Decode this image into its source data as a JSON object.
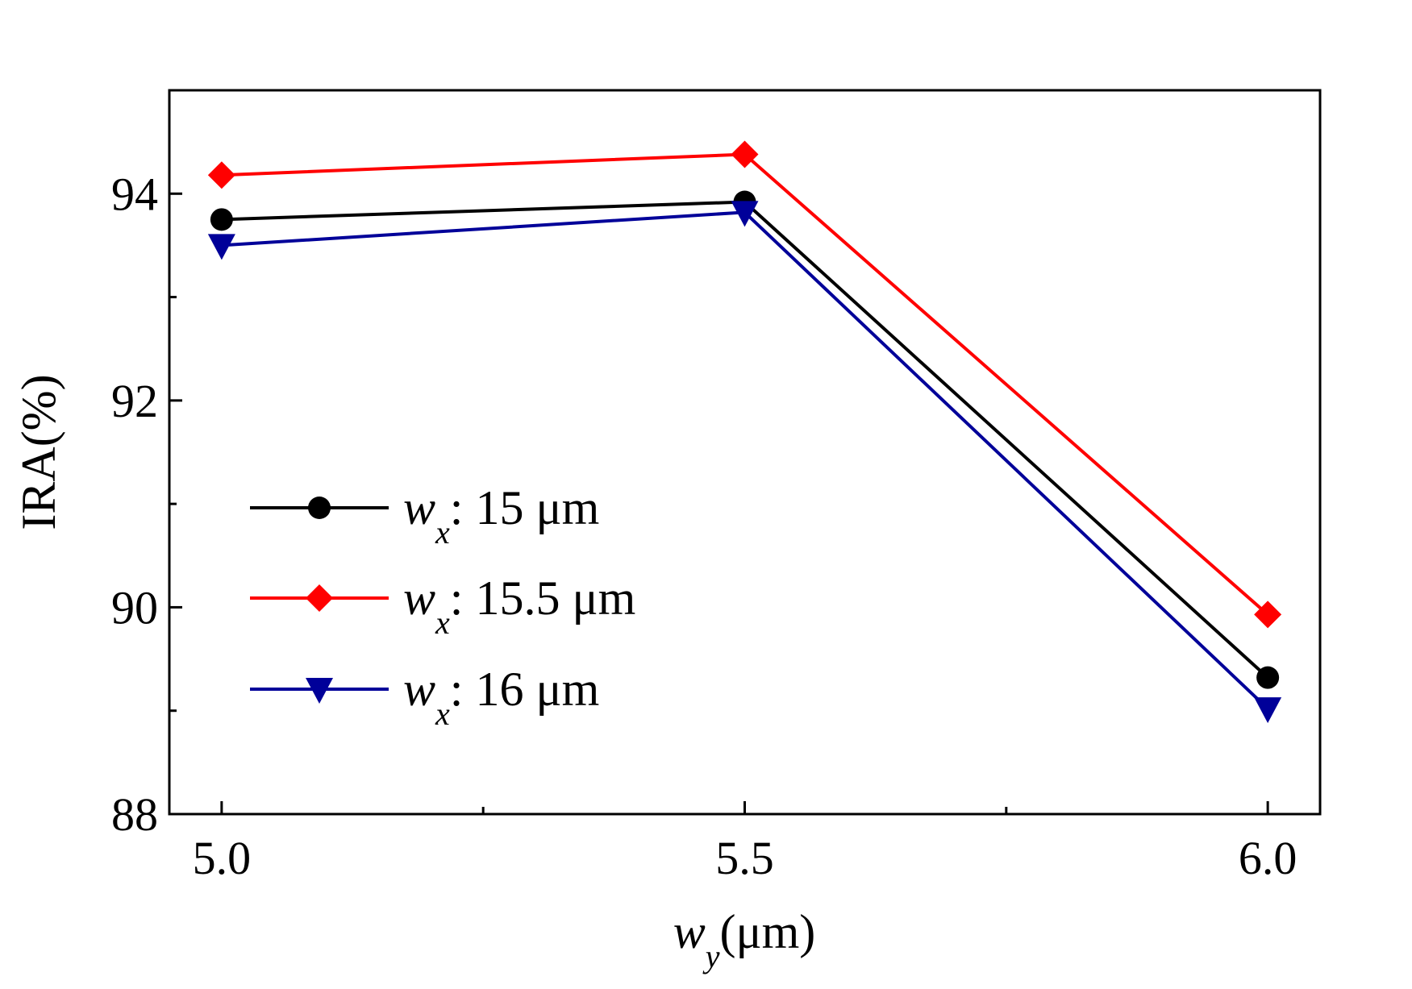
{
  "chart_data": {
    "type": "line",
    "title": "",
    "xlabel": {
      "main": "w",
      "sub": "y",
      "unit": "(μm)"
    },
    "ylabel": "IRA(%)",
    "x": [
      5.0,
      5.5,
      6.0
    ],
    "xlim": [
      4.95,
      6.05
    ],
    "ylim": [
      88,
      95
    ],
    "xticks": [
      "5.0",
      "5.5",
      "6.0"
    ],
    "xticks_values": [
      5.0,
      5.5,
      6.0
    ],
    "yticks": [
      "88",
      "90",
      "92",
      "94"
    ],
    "yticks_values": [
      88,
      90,
      92,
      94
    ],
    "legend_position": "lower-left",
    "series": [
      {
        "name": "w_x: 15 μm",
        "legend_main": "w",
        "legend_sub": "x",
        "legend_text": ": 15 μm",
        "color": "#000000",
        "marker": "circle",
        "values": [
          93.75,
          93.92,
          89.32
        ]
      },
      {
        "name": "w_x: 15.5 μm",
        "legend_main": "w",
        "legend_sub": "x",
        "legend_text": ": 15.5 μm",
        "color": "#ff0000",
        "marker": "diamond",
        "values": [
          94.18,
          94.38,
          89.93
        ]
      },
      {
        "name": "w_x: 16 μm",
        "legend_main": "w",
        "legend_sub": "x",
        "legend_text": ": 16 μm",
        "color": "#000099",
        "marker": "triangle-down",
        "values": [
          93.5,
          93.82,
          89.02
        ]
      }
    ]
  }
}
